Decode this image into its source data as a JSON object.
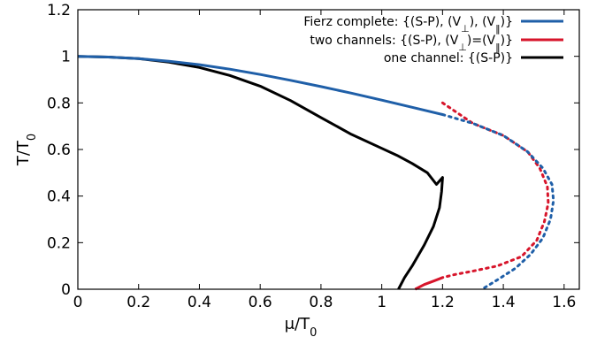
{
  "chart_data": {
    "type": "line",
    "xlabel": "μ/T0",
    "ylabel": "T/T0",
    "xlim": [
      0,
      1.65
    ],
    "ylim": [
      0,
      1.2
    ],
    "x_ticks": [
      "0",
      "0.2",
      "0.4",
      "0.6",
      "0.8",
      "1",
      "1.2",
      "1.4",
      "1.6"
    ],
    "y_ticks": [
      "0",
      "0.2",
      "0.4",
      "0.6",
      "0.8",
      "1",
      "1.2"
    ],
    "legend_position": "top-right",
    "grid": false,
    "series": [
      {
        "name": "Fierz complete: {(S-P), (V⊥), (V‖)}",
        "color": "#1f5fa8",
        "solid": [
          [
            0,
            1.0
          ],
          [
            0.1,
            0.997
          ],
          [
            0.2,
            0.99
          ],
          [
            0.3,
            0.979
          ],
          [
            0.4,
            0.964
          ],
          [
            0.5,
            0.945
          ],
          [
            0.6,
            0.922
          ],
          [
            0.7,
            0.897
          ],
          [
            0.8,
            0.87
          ],
          [
            0.9,
            0.842
          ],
          [
            1.0,
            0.812
          ],
          [
            1.1,
            0.781
          ],
          [
            1.2,
            0.75
          ],
          [
            1.3,
            0.712
          ],
          [
            1.4,
            0.66
          ],
          [
            1.48,
            0.59
          ],
          [
            1.53,
            0.52
          ],
          [
            1.56,
            0.45
          ],
          [
            1.565,
            0.38
          ],
          [
            1.555,
            0.3
          ],
          [
            1.53,
            0.22
          ],
          [
            1.49,
            0.15
          ],
          [
            1.44,
            0.09
          ],
          [
            1.38,
            0.04
          ],
          [
            1.33,
            0.0
          ]
        ],
        "dotted_from_x": 1.2
      },
      {
        "name": "two channels: {(S-P), (V⊥)=(V‖)}",
        "color": "#d7152b",
        "solid": [
          [
            1.11,
            0.0
          ],
          [
            1.14,
            0.02
          ],
          [
            1.17,
            0.035
          ],
          [
            1.2,
            0.05
          ]
        ],
        "dotted": [
          [
            1.2,
            0.8
          ],
          [
            1.3,
            0.712
          ],
          [
            1.4,
            0.66
          ],
          [
            1.48,
            0.59
          ],
          [
            1.52,
            0.52
          ],
          [
            1.545,
            0.44
          ],
          [
            1.548,
            0.37
          ],
          [
            1.535,
            0.29
          ],
          [
            1.51,
            0.21
          ],
          [
            1.46,
            0.14
          ],
          [
            1.38,
            0.1
          ],
          [
            1.3,
            0.078
          ],
          [
            1.24,
            0.063
          ],
          [
            1.2,
            0.05
          ]
        ]
      },
      {
        "name": "one channel: {(S-P)}",
        "color": "#000000",
        "solid": [
          [
            0,
            1.0
          ],
          [
            0.1,
            0.997
          ],
          [
            0.2,
            0.99
          ],
          [
            0.3,
            0.975
          ],
          [
            0.4,
            0.952
          ],
          [
            0.5,
            0.918
          ],
          [
            0.6,
            0.872
          ],
          [
            0.7,
            0.81
          ],
          [
            0.8,
            0.737
          ],
          [
            0.9,
            0.665
          ],
          [
            1.0,
            0.605
          ],
          [
            1.05,
            0.575
          ],
          [
            1.1,
            0.54
          ],
          [
            1.15,
            0.5
          ],
          [
            1.18,
            0.45
          ],
          [
            1.2,
            0.48
          ],
          [
            1.197,
            0.42
          ],
          [
            1.19,
            0.35
          ],
          [
            1.17,
            0.27
          ],
          [
            1.14,
            0.19
          ],
          [
            1.1,
            0.1
          ],
          [
            1.075,
            0.05
          ],
          [
            1.055,
            0.0
          ]
        ]
      }
    ]
  }
}
